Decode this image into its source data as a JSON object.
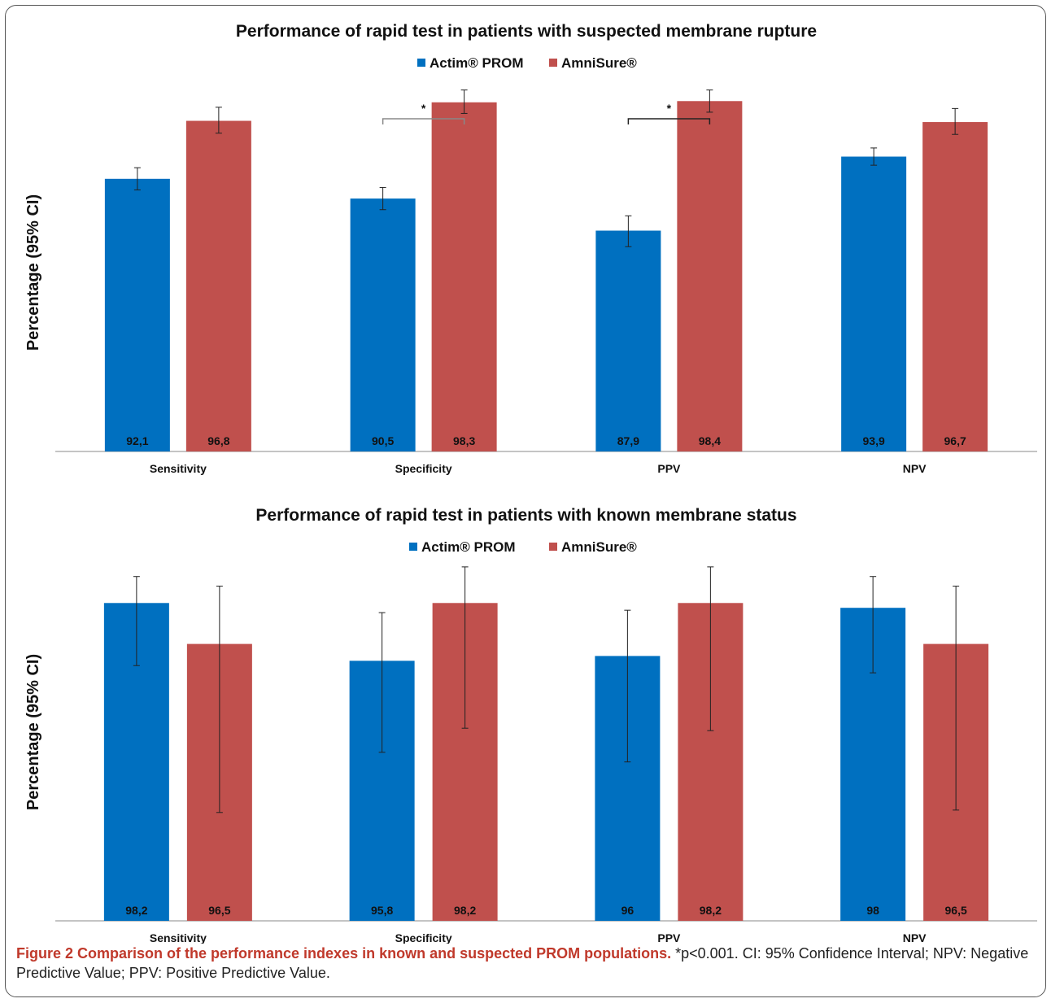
{
  "colors": {
    "actim": "#0070c0",
    "amnisure": "#c0504d",
    "axis": "#888888",
    "errbar": "#222222"
  },
  "chart_data": [
    {
      "type": "bar",
      "title": "Performance of rapid test in patients with suspected membrane rupture",
      "ylabel": "Percentage (95% CI)",
      "xlabel": "",
      "categories": [
        "Sensitivity",
        "Specificity",
        "PPV",
        "NPV"
      ],
      "ylim": [
        70,
        100
      ],
      "grid": false,
      "legend_position": "top-center",
      "series": [
        {
          "name": "Actim® PROM",
          "values": [
            92.1,
            90.5,
            87.9,
            93.9
          ],
          "labels": [
            "92,1",
            "90,5",
            "87,9",
            "93,9"
          ],
          "ci": [
            [
              91.2,
              93.0
            ],
            [
              89.6,
              91.4
            ],
            [
              86.6,
              89.1
            ],
            [
              93.2,
              94.6
            ]
          ]
        },
        {
          "name": "AmniSure®",
          "values": [
            96.8,
            98.3,
            98.4,
            96.7
          ],
          "labels": [
            "96,8",
            "98,3",
            "98,4",
            "96,7"
          ],
          "ci": [
            [
              95.8,
              97.9
            ],
            [
              97.4,
              99.3
            ],
            [
              97.5,
              99.3
            ],
            [
              95.7,
              97.8
            ]
          ]
        }
      ],
      "annotations": [
        {
          "text": "*",
          "category": "Specificity",
          "type": "significance-bracket"
        },
        {
          "text": "*",
          "category": "PPV",
          "type": "significance-bracket"
        }
      ]
    },
    {
      "type": "bar",
      "title": "Performance of rapid test in patients with known membrane status",
      "ylabel": "Percentage (95% CI)",
      "xlabel": "",
      "categories": [
        "Sensitivity",
        "Specificity",
        "PPV",
        "NPV"
      ],
      "ylim": [
        85,
        100
      ],
      "grid": false,
      "legend_position": "top-center",
      "series": [
        {
          "name": "Actim® PROM",
          "values": [
            98.2,
            95.8,
            96.0,
            98.0
          ],
          "labels": [
            "98,2",
            "95,8",
            "96",
            "98"
          ],
          "ci": [
            [
              95.6,
              99.3
            ],
            [
              92.0,
              97.8
            ],
            [
              91.6,
              97.9
            ],
            [
              95.3,
              99.3
            ]
          ]
        },
        {
          "name": "AmniSure®",
          "values": [
            96.5,
            98.2,
            98.2,
            96.5
          ],
          "labels": [
            "96,5",
            "98,2",
            "98,2",
            "96,5"
          ],
          "ci": [
            [
              89.5,
              98.9
            ],
            [
              93.0,
              99.7
            ],
            [
              92.9,
              99.7
            ],
            [
              89.6,
              98.9
            ]
          ]
        }
      ]
    }
  ],
  "caption": {
    "lead": "Figure 2 Comparison of the performance indexes in known and suspected PROM populations.",
    "rest": " *p<0.001. CI: 95% Confidence Interval; NPV: Negative Predictive Value; PPV: Positive Predictive Value."
  }
}
